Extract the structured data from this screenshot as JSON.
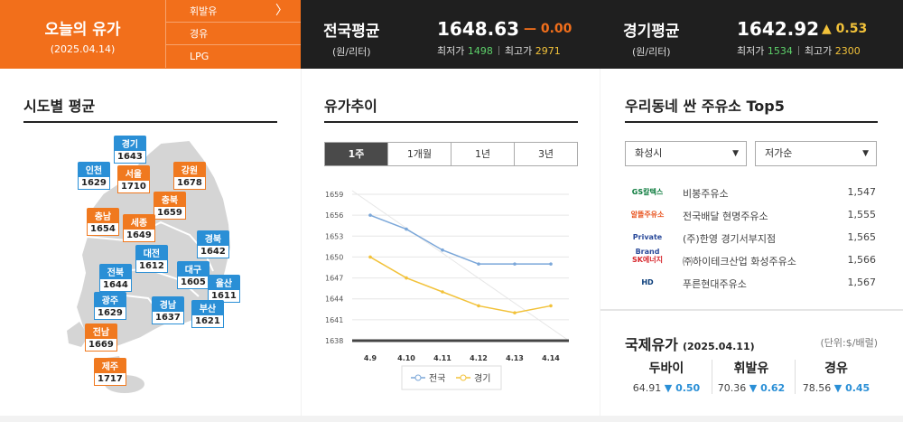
{
  "header": {
    "today_title": "오늘의 유가",
    "today_date": "(2025.04.14)",
    "fuel_menu": [
      "휘발유",
      "경유",
      "LPG"
    ],
    "national": {
      "label": "전국평균",
      "unit": "(원/리터)",
      "price": "1648.63",
      "change": "0.00",
      "change_sign": "—",
      "min_label": "최저가",
      "min": "1498",
      "max_label": "최고가",
      "max": "2971"
    },
    "gyeonggi": {
      "label": "경기평균",
      "unit": "(원/리터)",
      "price": "1642.92",
      "change": "0.53",
      "change_sign": "▲",
      "min_label": "최저가",
      "min": "1534",
      "max_label": "최고가",
      "max": "2300"
    }
  },
  "regional": {
    "title": "시도별 평균",
    "regions": [
      {
        "name": "경기",
        "value": "1643",
        "color": "blue"
      },
      {
        "name": "인천",
        "value": "1629",
        "color": "blue"
      },
      {
        "name": "서울",
        "value": "1710",
        "color": "orange"
      },
      {
        "name": "강원",
        "value": "1678",
        "color": "orange"
      },
      {
        "name": "충북",
        "value": "1659",
        "color": "orange"
      },
      {
        "name": "충남",
        "value": "1654",
        "color": "orange"
      },
      {
        "name": "세종",
        "value": "1649",
        "color": "orange"
      },
      {
        "name": "경북",
        "value": "1642",
        "color": "blue"
      },
      {
        "name": "대전",
        "value": "1612",
        "color": "blue"
      },
      {
        "name": "전북",
        "value": "1644",
        "color": "blue"
      },
      {
        "name": "대구",
        "value": "1605",
        "color": "blue"
      },
      {
        "name": "울산",
        "value": "1611",
        "color": "blue"
      },
      {
        "name": "광주",
        "value": "1629",
        "color": "blue"
      },
      {
        "name": "경남",
        "value": "1637",
        "color": "blue"
      },
      {
        "name": "부산",
        "value": "1621",
        "color": "blue"
      },
      {
        "name": "전남",
        "value": "1669",
        "color": "orange"
      },
      {
        "name": "제주",
        "value": "1717",
        "color": "orange"
      }
    ]
  },
  "trend": {
    "title": "유가추이",
    "tabs": [
      "1주",
      "1개월",
      "1년",
      "3년"
    ],
    "active_tab": 0
  },
  "chart_data": {
    "type": "line",
    "x": [
      "4.9",
      "4.10",
      "4.11",
      "4.12",
      "4.13",
      "4.14"
    ],
    "series": [
      {
        "name": "전국",
        "values": [
          1656,
          1654,
          1651,
          1649,
          1649,
          1649
        ],
        "color": "#7ba7d9"
      },
      {
        "name": "경기",
        "values": [
          1650,
          1647,
          1645,
          1643,
          1642,
          1643
        ],
        "color": "#f2c23a"
      }
    ],
    "ylim": [
      1638,
      1659
    ],
    "yticks": [
      1638,
      1641,
      1644,
      1647,
      1650,
      1653,
      1656,
      1659
    ],
    "grid": true,
    "legend": "bottom"
  },
  "top5": {
    "title": "우리동네 싼 주유소 Top5",
    "region_select": "화성시",
    "sort_select": "저가순",
    "stations": [
      {
        "brand": "GS칼텍스",
        "brand_color": "#0a7a3c",
        "name": "비봉주유소",
        "price": "1,547"
      },
      {
        "brand": "알뜰주유소",
        "brand_color": "#e8541f",
        "name": "전국배달 현명주유소",
        "price": "1,555"
      },
      {
        "brand": "Private Brand",
        "brand_color": "#2a4a9a",
        "name": "(주)한영 경기서부지점",
        "price": "1,565"
      },
      {
        "brand": "SK에너지",
        "brand_color": "#d7262c",
        "name": "㈜하이테크산업 화성주유소",
        "price": "1,566"
      },
      {
        "brand": "HD",
        "brand_color": "#0a3d7a",
        "name": "푸른현대주유소",
        "price": "1,567"
      }
    ]
  },
  "intl": {
    "title": "국제유가",
    "date": "(2025.04.11)",
    "unit": "(단위:$/배럴)",
    "items": [
      {
        "name": "두바이",
        "price": "64.91",
        "change": "▼ 0.50"
      },
      {
        "name": "휘발유",
        "price": "70.36",
        "change": "▼ 0.62"
      },
      {
        "name": "경유",
        "price": "78.56",
        "change": "▼ 0.45"
      }
    ]
  }
}
